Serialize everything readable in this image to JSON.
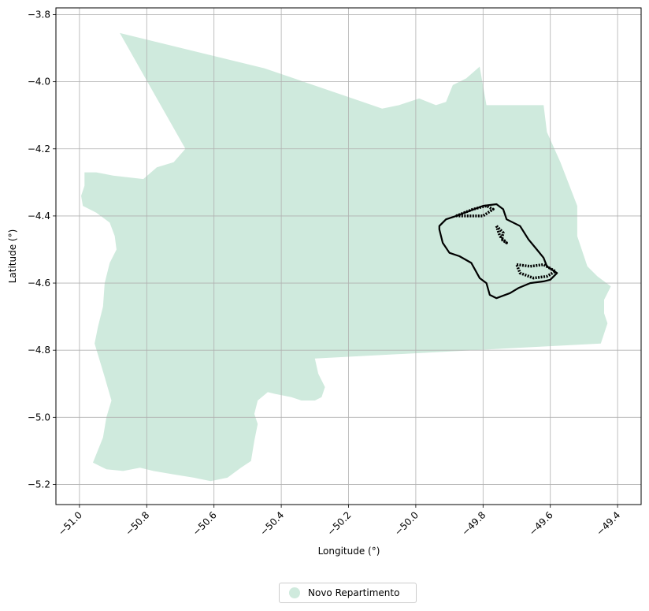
{
  "chart_data": {
    "type": "map",
    "xlabel": "Longitude (°)",
    "ylabel": "Latitude (°)",
    "xlim": [
      -51.07,
      -49.33
    ],
    "ylim": [
      -5.26,
      -3.78
    ],
    "x_ticks": [
      -51.0,
      -50.8,
      -50.6,
      -50.4,
      -50.2,
      -50.0,
      -49.8,
      -49.6,
      -49.4
    ],
    "x_tick_labels": [
      "−51.0",
      "−50.8",
      "−50.6",
      "−50.4",
      "−50.2",
      "−50.0",
      "−49.8",
      "−49.6",
      "−49.4"
    ],
    "y_ticks": [
      -3.8,
      -4.0,
      -4.2,
      -4.4,
      -4.6,
      -4.8,
      -5.0,
      -5.2
    ],
    "y_tick_labels": [
      "−3.8",
      "−4.0",
      "−4.2",
      "−4.4",
      "−4.6",
      "−4.8",
      "−5.0",
      "−5.2"
    ],
    "grid": true,
    "legend_position": "bottom-center",
    "legend": [
      {
        "label": "Novo Repartimento",
        "color": "#cfeadd"
      }
    ],
    "region": {
      "name": "Novo Repartimento",
      "fill": "#cfeadd",
      "outline": [
        [
          -50.88,
          -3.855
        ],
        [
          -50.45,
          -3.96
        ],
        [
          -50.1,
          -4.08
        ],
        [
          -50.05,
          -4.07
        ],
        [
          -49.99,
          -4.05
        ],
        [
          -49.94,
          -4.07
        ],
        [
          -49.91,
          -4.06
        ],
        [
          -49.89,
          -4.01
        ],
        [
          -49.85,
          -3.99
        ],
        [
          -49.81,
          -3.955
        ],
        [
          -49.795,
          -4.04
        ],
        [
          -49.79,
          -4.07
        ],
        [
          -49.62,
          -4.07
        ],
        [
          -49.61,
          -4.15
        ],
        [
          -49.57,
          -4.24
        ],
        [
          -49.52,
          -4.37
        ],
        [
          -49.52,
          -4.46
        ],
        [
          -49.49,
          -4.55
        ],
        [
          -49.46,
          -4.58
        ],
        [
          -49.42,
          -4.61
        ],
        [
          -49.44,
          -4.65
        ],
        [
          -49.44,
          -4.69
        ],
        [
          -49.43,
          -4.72
        ],
        [
          -49.45,
          -4.78
        ],
        [
          -50.3,
          -4.825
        ],
        [
          -50.29,
          -4.87
        ],
        [
          -50.27,
          -4.91
        ],
        [
          -50.28,
          -4.94
        ],
        [
          -50.3,
          -4.95
        ],
        [
          -50.34,
          -4.95
        ],
        [
          -50.37,
          -4.94
        ],
        [
          -50.42,
          -4.93
        ],
        [
          -50.44,
          -4.925
        ],
        [
          -50.47,
          -4.95
        ],
        [
          -50.48,
          -4.99
        ],
        [
          -50.47,
          -5.02
        ],
        [
          -50.48,
          -5.07
        ],
        [
          -50.49,
          -5.13
        ],
        [
          -50.52,
          -5.15
        ],
        [
          -50.56,
          -5.18
        ],
        [
          -50.61,
          -5.19
        ],
        [
          -50.66,
          -5.18
        ],
        [
          -50.72,
          -5.17
        ],
        [
          -50.78,
          -5.16
        ],
        [
          -50.82,
          -5.15
        ],
        [
          -50.87,
          -5.16
        ],
        [
          -50.92,
          -5.155
        ],
        [
          -50.96,
          -5.135
        ],
        [
          -50.93,
          -5.06
        ],
        [
          -50.92,
          -5.0
        ],
        [
          -50.905,
          -4.95
        ],
        [
          -50.925,
          -4.88
        ],
        [
          -50.94,
          -4.83
        ],
        [
          -50.955,
          -4.78
        ],
        [
          -50.945,
          -4.73
        ],
        [
          -50.93,
          -4.67
        ],
        [
          -50.925,
          -4.6
        ],
        [
          -50.91,
          -4.54
        ],
        [
          -50.89,
          -4.5
        ],
        [
          -50.895,
          -4.46
        ],
        [
          -50.91,
          -4.42
        ],
        [
          -50.95,
          -4.39
        ],
        [
          -50.99,
          -4.37
        ],
        [
          -50.995,
          -4.34
        ],
        [
          -50.985,
          -4.31
        ],
        [
          -50.985,
          -4.27
        ],
        [
          -50.95,
          -4.27
        ],
        [
          -50.9,
          -4.28
        ],
        [
          -50.81,
          -4.29
        ],
        [
          -50.77,
          -4.255
        ],
        [
          -50.72,
          -4.24
        ],
        [
          -50.685,
          -4.2
        ]
      ]
    },
    "boundary": {
      "color": "#000000",
      "outline": [
        [
          -49.93,
          -4.43
        ],
        [
          -49.91,
          -4.41
        ],
        [
          -49.88,
          -4.4
        ],
        [
          -49.84,
          -4.385
        ],
        [
          -49.8,
          -4.37
        ],
        [
          -49.76,
          -4.365
        ],
        [
          -49.74,
          -4.38
        ],
        [
          -49.73,
          -4.41
        ],
        [
          -49.69,
          -4.43
        ],
        [
          -49.665,
          -4.47
        ],
        [
          -49.64,
          -4.5
        ],
        [
          -49.62,
          -4.525
        ],
        [
          -49.61,
          -4.55
        ],
        [
          -49.58,
          -4.57
        ],
        [
          -49.6,
          -4.59
        ],
        [
          -49.62,
          -4.595
        ],
        [
          -49.66,
          -4.6
        ],
        [
          -49.695,
          -4.615
        ],
        [
          -49.72,
          -4.63
        ],
        [
          -49.76,
          -4.645
        ],
        [
          -49.78,
          -4.635
        ],
        [
          -49.79,
          -4.6
        ],
        [
          -49.81,
          -4.585
        ],
        [
          -49.835,
          -4.54
        ],
        [
          -49.87,
          -4.52
        ],
        [
          -49.9,
          -4.51
        ],
        [
          -49.92,
          -4.48
        ],
        [
          -49.93,
          -4.44
        ]
      ],
      "inner_lobes": [
        [
          [
            -49.88,
            -4.4
          ],
          [
            -49.83,
            -4.38
          ],
          [
            -49.79,
            -4.37
          ],
          [
            -49.77,
            -4.38
          ],
          [
            -49.8,
            -4.4
          ],
          [
            -49.84,
            -4.4
          ],
          [
            -49.88,
            -4.4
          ]
        ],
        [
          [
            -49.7,
            -4.545
          ],
          [
            -49.66,
            -4.55
          ],
          [
            -49.62,
            -4.545
          ],
          [
            -49.585,
            -4.565
          ],
          [
            -49.61,
            -4.58
          ],
          [
            -49.65,
            -4.585
          ],
          [
            -49.69,
            -4.57
          ],
          [
            -49.7,
            -4.545
          ]
        ],
        [
          [
            -49.76,
            -4.43
          ],
          [
            -49.74,
            -4.45
          ],
          [
            -49.745,
            -4.47
          ],
          [
            -49.73,
            -4.48
          ],
          [
            -49.75,
            -4.46
          ],
          [
            -49.76,
            -4.43
          ]
        ]
      ]
    }
  }
}
